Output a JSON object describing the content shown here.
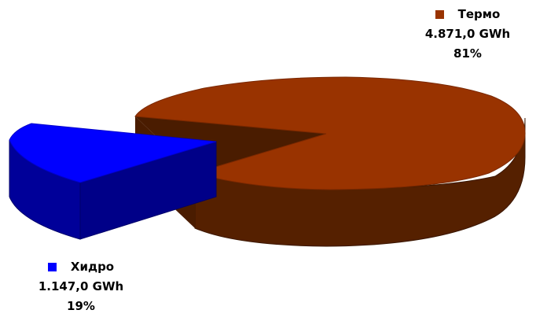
{
  "chart_data": {
    "type": "pie",
    "style": "3d-exploded",
    "slices": [
      {
        "label": "Термо",
        "value_text": "4.871,0 GWh",
        "value": 4871.0,
        "unit": "GWh",
        "percent_text": "81%",
        "percent": 81,
        "color": "#993300",
        "color_side": "#552000"
      },
      {
        "label": "Хидро",
        "value_text": "1.147,0 GWh",
        "value": 1147.0,
        "unit": "GWh",
        "percent_text": "19%",
        "percent": 19,
        "color": "#0000FF",
        "color_side": "#000099"
      }
    ],
    "legend": "inline labels next to slices"
  }
}
